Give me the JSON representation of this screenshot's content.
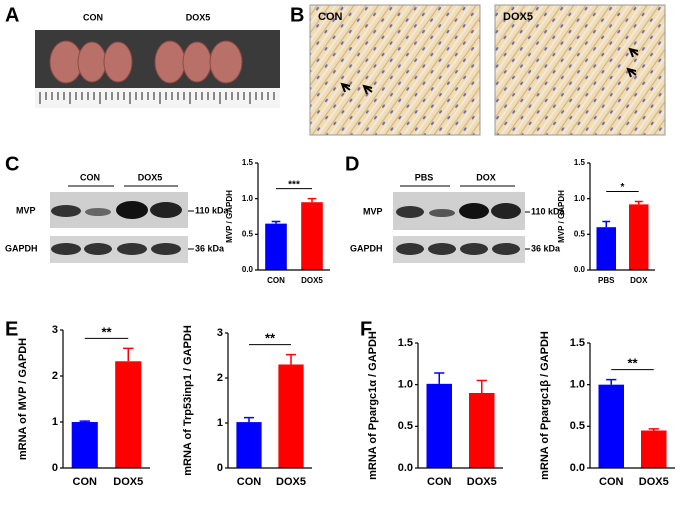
{
  "panels": {
    "A": {
      "letter": "A",
      "labels": [
        "CON",
        "DOX5"
      ]
    },
    "B": {
      "letter": "B",
      "labels": [
        "CON",
        "DOX5"
      ]
    },
    "C": {
      "letter": "C",
      "groups": [
        "CON",
        "DOX5"
      ],
      "rows": [
        "MVP",
        "GAPDH"
      ],
      "sizes": [
        "110 kDa",
        "36 kDa"
      ]
    },
    "D": {
      "letter": "D",
      "groups": [
        "PBS",
        "DOX"
      ],
      "rows": [
        "MVP",
        "GAPDH"
      ],
      "sizes": [
        "110 kDa",
        "36 kDa"
      ]
    },
    "E": {
      "letter": "E"
    },
    "F": {
      "letter": "F"
    }
  },
  "chart_data": [
    {
      "type": "bar",
      "ylabel": "MVP / GAPDH",
      "categories": [
        "CON",
        "DOX5"
      ],
      "values": [
        0.65,
        0.95
      ],
      "errors": [
        0.03,
        0.05
      ],
      "colors": [
        "#0000ff",
        "#ff0000"
      ],
      "ylim": [
        0,
        1.5
      ],
      "yticks": [
        {
          "value": 0,
          "label": "0.0"
        },
        0.5,
        {
          "value": 1,
          "label": "1.0"
        },
        1.5
      ],
      "annotation": "***"
    },
    {
      "type": "bar",
      "ylabel": "MVP / GAPDH",
      "categories": [
        "PBS",
        "DOX"
      ],
      "values": [
        0.6,
        0.92
      ],
      "errors": [
        0.08,
        0.04
      ],
      "colors": [
        "#0000ff",
        "#ff0000"
      ],
      "ylim": [
        0,
        1.5
      ],
      "yticks": [
        {
          "value": 0,
          "label": "0.0"
        },
        0.5,
        {
          "value": 1,
          "label": "1.0"
        },
        1.5
      ],
      "annotation": "*"
    },
    {
      "type": "bar",
      "ylabel": "mRNA of MVP / GAPDH",
      "categories": [
        "CON",
        "DOX5"
      ],
      "values": [
        1.0,
        2.32
      ],
      "errors": [
        0.02,
        0.28
      ],
      "colors": [
        "#0000ff",
        "#ff0000"
      ],
      "ylim": [
        0,
        3
      ],
      "yticks": [
        0,
        1,
        2,
        3
      ],
      "annotation": "**"
    },
    {
      "type": "bar",
      "ylabel": "mRNA of Trp53inp1 / GAPDH",
      "categories": [
        "CON",
        "DOX5"
      ],
      "values": [
        1.02,
        2.3
      ],
      "errors": [
        0.1,
        0.22
      ],
      "colors": [
        "#0000ff",
        "#ff0000"
      ],
      "ylim": [
        0,
        3
      ],
      "yticks": [
        0,
        1,
        2,
        3
      ],
      "annotation": "**"
    },
    {
      "type": "bar",
      "ylabel": "mRNA of Ppargc1α / GAPDH",
      "categories": [
        "CON",
        "DOX5"
      ],
      "values": [
        1.01,
        0.9
      ],
      "errors": [
        0.13,
        0.15
      ],
      "colors": [
        "#0000ff",
        "#ff0000"
      ],
      "ylim": [
        0,
        1.5
      ],
      "yticks": [
        {
          "value": 0,
          "label": "0.0"
        },
        0.5,
        {
          "value": 1,
          "label": "1.0"
        },
        1.5
      ]
    },
    {
      "type": "bar",
      "ylabel": "mRNA of Ppargc1β / GAPDH",
      "categories": [
        "CON",
        "DOX5"
      ],
      "values": [
        1.0,
        0.45
      ],
      "errors": [
        0.06,
        0.02
      ],
      "colors": [
        "#0000ff",
        "#ff0000"
      ],
      "ylim": [
        0,
        1.5
      ],
      "yticks": [
        {
          "value": 0,
          "label": "0.0"
        },
        0.5,
        {
          "value": 1,
          "label": "1.0"
        },
        1.5
      ],
      "annotation": "**"
    }
  ]
}
